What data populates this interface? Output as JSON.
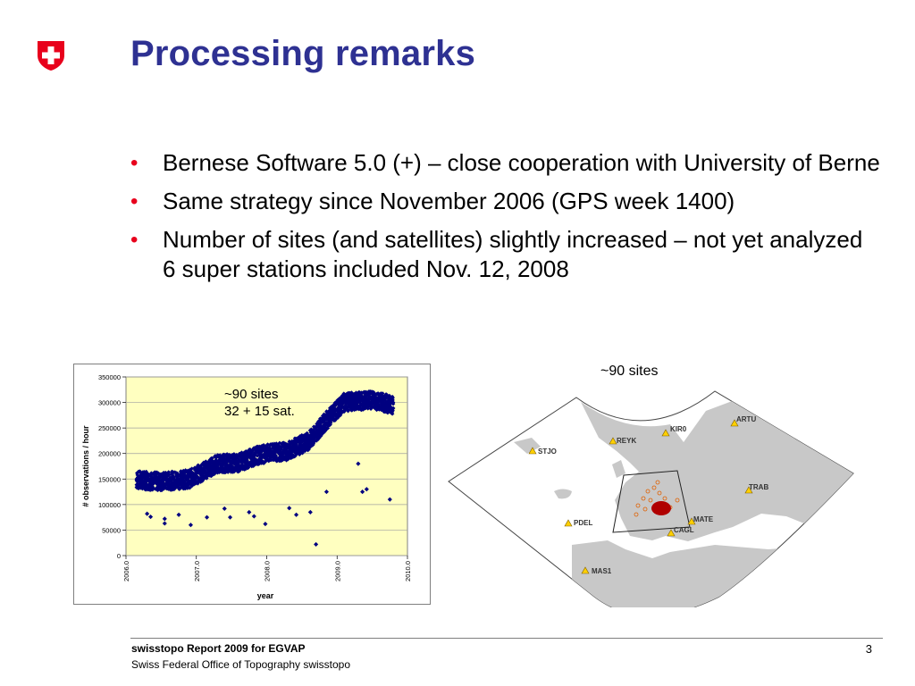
{
  "slide": {
    "title": "Processing remarks",
    "bullets": [
      "Bernese Software 5.0 (+) – close cooperation with University of Berne",
      "Same strategy since November 2006 (GPS week 1400)",
      "Number of sites (and satellites) slightly increased – not yet analyzed 6 super stations included Nov. 12, 2008"
    ],
    "bullet_glyph": "•",
    "map_caption": "~90 sites",
    "footer_title": "swisstopo Report 2009 for EGVAP",
    "footer_subtitle": "Swiss Federal Office of Topography swisstopo",
    "page_number": "3"
  },
  "logo": {
    "icon": "swiss-cross-shield-icon",
    "color": "#e8001c"
  },
  "colors": {
    "title": "#2e3192",
    "bullet": "#e8001c",
    "plot_bg": "#ffffc0",
    "marker": "#000080"
  },
  "chart_data": {
    "type": "scatter",
    "xlabel": "year",
    "ylabel": "# observations / hour",
    "x_ticks": [
      "2006.0",
      "2007.0",
      "2008.0",
      "2009.0",
      "2010.0"
    ],
    "y_ticks": [
      "0",
      "50000",
      "100000",
      "150000",
      "200000",
      "250000",
      "300000",
      "350000"
    ],
    "xlim": [
      2006.0,
      2010.0
    ],
    "ylim": [
      0,
      350000
    ],
    "grid": true,
    "annotation_line1": "~90 sites",
    "annotation_line2": "32 + 15 sat.",
    "trend": [
      [
        2006.15,
        148000
      ],
      [
        2006.5,
        145000
      ],
      [
        2006.9,
        150000
      ],
      [
        2007.3,
        180000
      ],
      [
        2007.6,
        182000
      ],
      [
        2007.9,
        198000
      ],
      [
        2008.3,
        205000
      ],
      [
        2008.6,
        225000
      ],
      [
        2008.85,
        265000
      ],
      [
        2009.1,
        300000
      ],
      [
        2009.5,
        305000
      ],
      [
        2009.8,
        295000
      ]
    ],
    "outliers": [
      [
        2006.3,
        82000
      ],
      [
        2006.35,
        76000
      ],
      [
        2006.55,
        72000
      ],
      [
        2006.55,
        63000
      ],
      [
        2006.75,
        80000
      ],
      [
        2006.92,
        60000
      ],
      [
        2007.15,
        75000
      ],
      [
        2007.4,
        92000
      ],
      [
        2007.48,
        75000
      ],
      [
        2007.75,
        85000
      ],
      [
        2007.82,
        77000
      ],
      [
        2007.98,
        62000
      ],
      [
        2008.32,
        93000
      ],
      [
        2008.42,
        80000
      ],
      [
        2008.62,
        85000
      ],
      [
        2008.7,
        22000
      ],
      [
        2008.85,
        125000
      ],
      [
        2009.3,
        180000
      ],
      [
        2009.36,
        125000
      ],
      [
        2009.42,
        130000
      ],
      [
        2009.75,
        110000
      ]
    ]
  },
  "map": {
    "stations": [
      {
        "name": "ARTU"
      },
      {
        "name": "KIR0"
      },
      {
        "name": "REYK"
      },
      {
        "name": "STJO"
      },
      {
        "name": "TRAB"
      },
      {
        "name": "PDEL"
      },
      {
        "name": "MATE"
      },
      {
        "name": "CAGL"
      },
      {
        "name": "MAS1"
      }
    ]
  }
}
